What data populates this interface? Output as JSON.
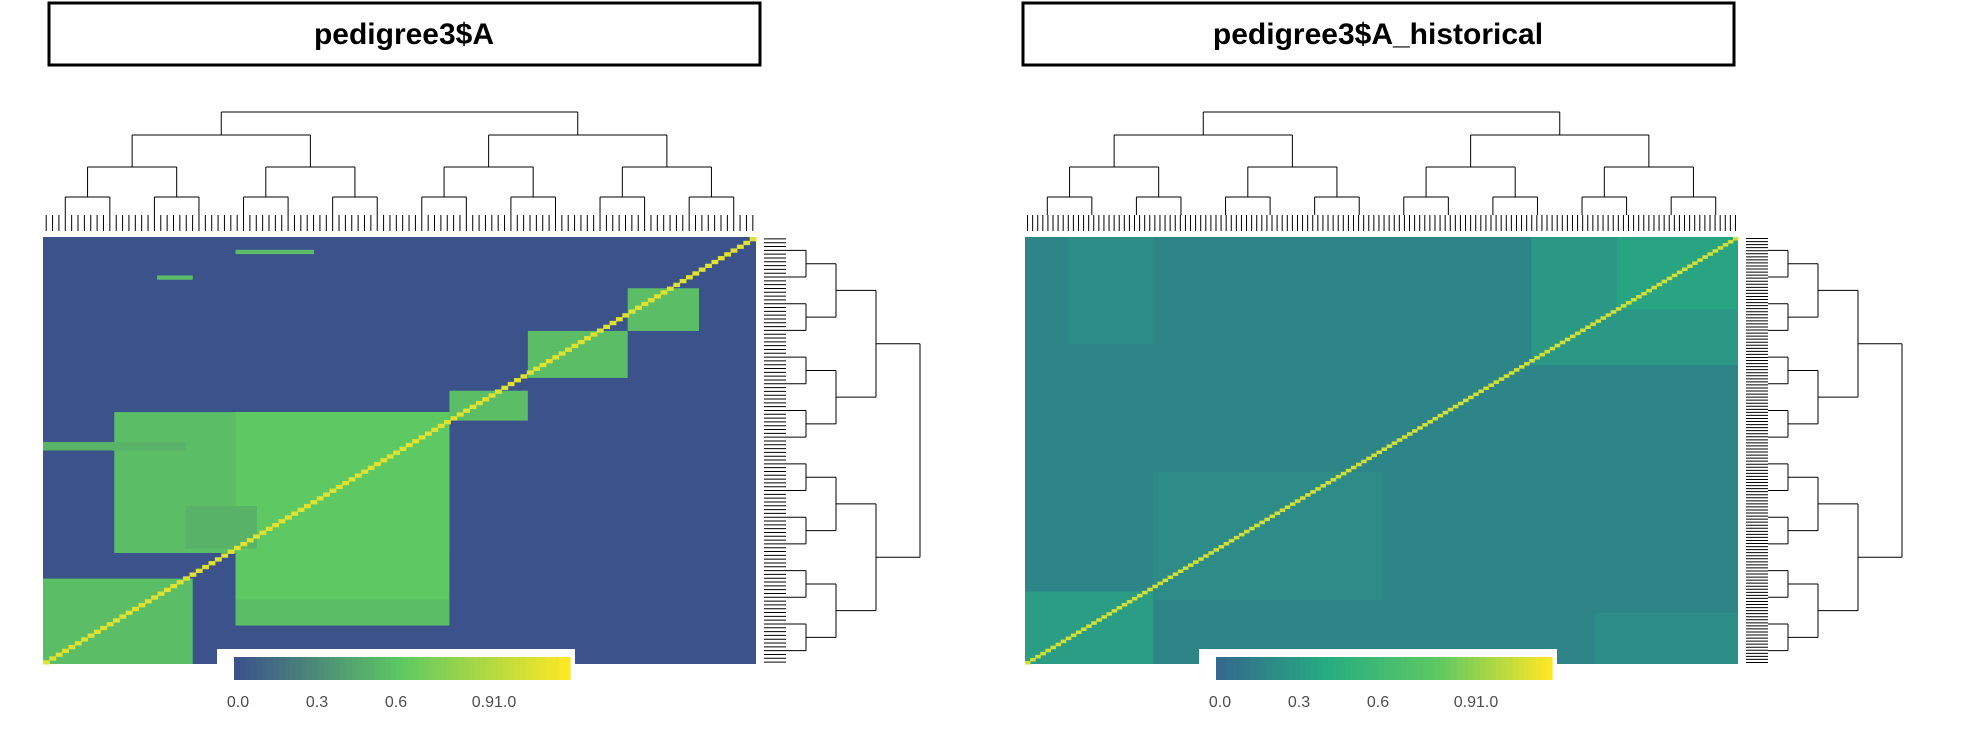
{
  "chart_data": [
    {
      "type": "heatmap",
      "title": "pedigree3$A",
      "xlabel": "",
      "ylabel": "",
      "value_range": [
        0,
        1.1
      ],
      "colorscale": [
        "#3b528b",
        "#5ec962",
        "#fde725"
      ],
      "colorbar_ticks": [
        {
          "value": 0.0,
          "label": "0.0"
        },
        {
          "value": 0.3,
          "label": "0.3"
        },
        {
          "value": 0.6,
          "label": "0.6"
        },
        {
          "value": 0.9,
          "label": "0.9"
        },
        {
          "value": 1.0,
          "label": "1.0"
        }
      ],
      "background_value": 0.0,
      "diagonal_value": 1.0,
      "blocks": [
        {
          "rows": [
            0.8,
            1.0
          ],
          "cols": [
            0.0,
            0.21
          ],
          "value": 0.5
        },
        {
          "rows": [
            0.41,
            0.74
          ],
          "cols": [
            0.1,
            0.27
          ],
          "value": 0.5
        },
        {
          "rows": [
            0.41,
            0.74
          ],
          "cols": [
            0.27,
            0.57
          ],
          "value": 0.58
        },
        {
          "rows": [
            0.41,
            0.85
          ],
          "cols": [
            0.27,
            0.57
          ],
          "value": 0.55
        },
        {
          "rows": [
            0.63,
            0.73
          ],
          "cols": [
            0.2,
            0.3
          ],
          "value": 0.45
        },
        {
          "rows": [
            0.36,
            0.43
          ],
          "cols": [
            0.57,
            0.68
          ],
          "value": 0.5
        },
        {
          "rows": [
            0.22,
            0.33
          ],
          "cols": [
            0.68,
            0.82
          ],
          "value": 0.5
        },
        {
          "rows": [
            0.12,
            0.22
          ],
          "cols": [
            0.82,
            0.92
          ],
          "value": 0.5
        },
        {
          "rows": [
            0.85,
            0.91
          ],
          "cols": [
            0.27,
            0.57
          ],
          "value": 0.5
        },
        {
          "rows": [
            0.48,
            0.5
          ],
          "cols": [
            0.0,
            0.2
          ],
          "value": 0.45
        },
        {
          "rows": [
            0.03,
            0.04
          ],
          "cols": [
            0.27,
            0.38
          ],
          "value": 0.5
        },
        {
          "rows": [
            0.09,
            0.1
          ],
          "cols": [
            0.16,
            0.21
          ],
          "value": 0.5
        }
      ],
      "series_rows": 112
    },
    {
      "type": "heatmap",
      "title": "pedigree3$A_historical",
      "xlabel": "",
      "ylabel": "",
      "value_range": [
        0,
        1.1
      ],
      "colorscale": [
        "#33698d",
        "#27ad81",
        "#5ec962",
        "#fde725"
      ],
      "colorbar_ticks": [
        {
          "value": 0.0,
          "label": "0.0"
        },
        {
          "value": 0.3,
          "label": "0.3"
        },
        {
          "value": 0.6,
          "label": "0.6"
        },
        {
          "value": 0.9,
          "label": "0.9"
        },
        {
          "value": 1.0,
          "label": "1.0"
        }
      ],
      "background_value": 0.15,
      "diagonal_value": 1.0,
      "blocks": [
        {
          "rows": [
            0.0,
            0.3
          ],
          "cols": [
            0.71,
            1.0
          ],
          "value": 0.25
        },
        {
          "rows": [
            0.0,
            0.17
          ],
          "cols": [
            0.83,
            1.0
          ],
          "value": 0.32
        },
        {
          "rows": [
            0.83,
            1.0
          ],
          "cols": [
            0.0,
            0.18
          ],
          "value": 0.28
        },
        {
          "rows": [
            0.0,
            0.25
          ],
          "cols": [
            0.06,
            0.18
          ],
          "value": 0.2
        },
        {
          "rows": [
            0.88,
            1.0
          ],
          "cols": [
            0.8,
            1.0
          ],
          "value": 0.2
        },
        {
          "rows": [
            0.55,
            0.85
          ],
          "cols": [
            0.18,
            0.5
          ],
          "value": 0.19
        }
      ],
      "series_rows": 140
    }
  ],
  "legend": {
    "tick_labels": [
      "0.0",
      "0.3",
      "0.6",
      "0.91.0"
    ]
  }
}
